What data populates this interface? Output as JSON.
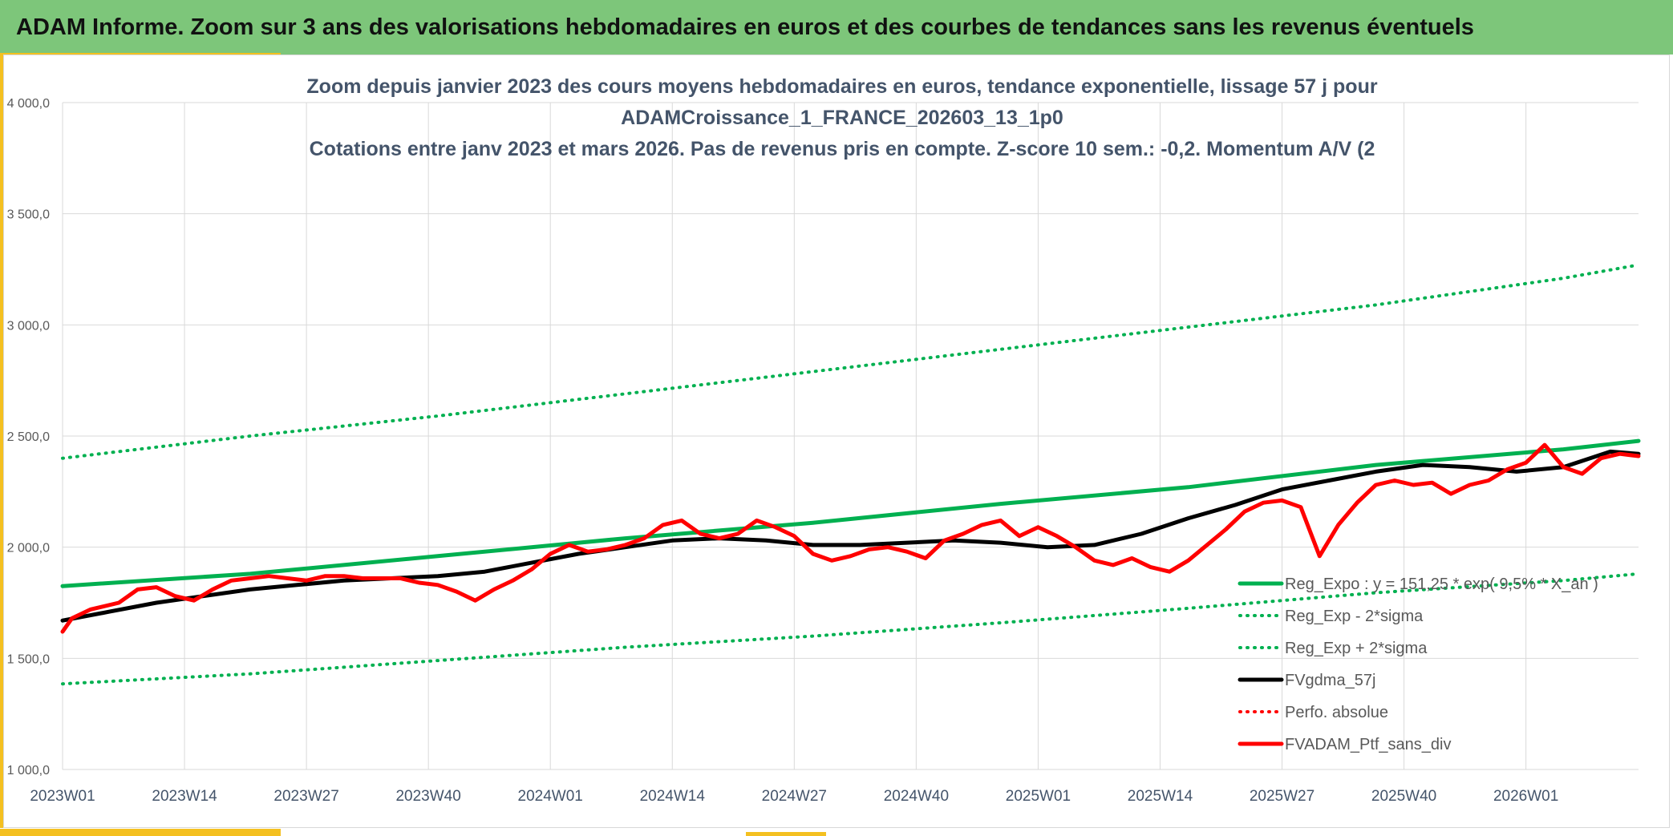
{
  "header": {
    "title": "ADAM Informe. Zoom sur 3 ans des valorisations hebdomadaires en euros et des courbes de tendances sans les revenus éventuels"
  },
  "colors": {
    "banner": "#7dc67a",
    "accent": "#f4c020",
    "trend": "#00b050",
    "mean": "#000000",
    "price": "#ff0000",
    "grid": "#d9d9d9"
  },
  "chart_data": {
    "type": "line",
    "title_lines": [
      "Zoom depuis janvier 2023 des cours moyens hebdomadaires en euros, tendance exponentielle, lissage 57 j pour",
      "ADAMCroissance_1_FRANCE_202603_13_1p0",
      "Cotations entre janv 2023 et mars 2026. Pas de revenus pris en compte. Z-score 10 sem.: -0,2. Momentum A/V (2"
    ],
    "xlabel": "",
    "ylabel": "",
    "ylim": [
      1000,
      4000
    ],
    "yticks": [
      1000,
      1500,
      2000,
      2500,
      3000,
      3500,
      4000
    ],
    "ytick_labels": [
      "1 000,0",
      "1 500,0",
      "2 000,0",
      "2 500,0",
      "3 000,0",
      "3 500,0",
      "4 000,0"
    ],
    "xlim": [
      0,
      168
    ],
    "x_ticks": [
      {
        "index": 0,
        "label": "2023W01"
      },
      {
        "index": 13,
        "label": "2023W14"
      },
      {
        "index": 26,
        "label": "2023W27"
      },
      {
        "index": 39,
        "label": "2023W40"
      },
      {
        "index": 52,
        "label": "2024W01"
      },
      {
        "index": 65,
        "label": "2024W14"
      },
      {
        "index": 78,
        "label": "2024W27"
      },
      {
        "index": 91,
        "label": "2024W40"
      },
      {
        "index": 104,
        "label": "2025W01"
      },
      {
        "index": 117,
        "label": "2025W14"
      },
      {
        "index": 130,
        "label": "2025W27"
      },
      {
        "index": 143,
        "label": "2025W40"
      },
      {
        "index": 156,
        "label": "2026W01"
      }
    ],
    "legend_position": "bottom-right",
    "series": [
      {
        "name": "Reg_Expo : y = 151,25 * exp( 9,5% * X_an )",
        "style": "solid",
        "color": "#00b050",
        "points": [
          [
            0,
            1825
          ],
          [
            20,
            1880
          ],
          [
            40,
            1960
          ],
          [
            60,
            2040
          ],
          [
            80,
            2110
          ],
          [
            100,
            2195
          ],
          [
            120,
            2270
          ],
          [
            140,
            2370
          ],
          [
            160,
            2440
          ],
          [
            168,
            2478
          ]
        ]
      },
      {
        "name": "Reg_Exp - 2*sigma",
        "style": "dotted",
        "color": "#00b050",
        "points": [
          [
            0,
            1385
          ],
          [
            20,
            1430
          ],
          [
            40,
            1490
          ],
          [
            60,
            1550
          ],
          [
            80,
            1600
          ],
          [
            100,
            1660
          ],
          [
            120,
            1725
          ],
          [
            140,
            1795
          ],
          [
            160,
            1850
          ],
          [
            168,
            1880
          ]
        ]
      },
      {
        "name": "Reg_Exp + 2*sigma",
        "style": "dotted",
        "color": "#00b050",
        "points": [
          [
            0,
            2400
          ],
          [
            20,
            2500
          ],
          [
            40,
            2590
          ],
          [
            60,
            2690
          ],
          [
            80,
            2790
          ],
          [
            100,
            2890
          ],
          [
            120,
            2990
          ],
          [
            140,
            3090
          ],
          [
            160,
            3210
          ],
          [
            168,
            3270
          ]
        ]
      },
      {
        "name": "FVgdma_57j",
        "style": "solid",
        "color": "#000000",
        "points": [
          [
            0,
            1670
          ],
          [
            5,
            1710
          ],
          [
            10,
            1750
          ],
          [
            15,
            1780
          ],
          [
            20,
            1810
          ],
          [
            25,
            1830
          ],
          [
            30,
            1850
          ],
          [
            35,
            1860
          ],
          [
            40,
            1870
          ],
          [
            45,
            1890
          ],
          [
            50,
            1930
          ],
          [
            55,
            1970
          ],
          [
            60,
            2000
          ],
          [
            65,
            2030
          ],
          [
            70,
            2040
          ],
          [
            75,
            2030
          ],
          [
            80,
            2010
          ],
          [
            85,
            2010
          ],
          [
            90,
            2020
          ],
          [
            95,
            2030
          ],
          [
            100,
            2020
          ],
          [
            105,
            2000
          ],
          [
            110,
            2010
          ],
          [
            115,
            2060
          ],
          [
            120,
            2130
          ],
          [
            125,
            2190
          ],
          [
            130,
            2260
          ],
          [
            135,
            2300
          ],
          [
            140,
            2340
          ],
          [
            145,
            2370
          ],
          [
            150,
            2360
          ],
          [
            155,
            2340
          ],
          [
            160,
            2360
          ],
          [
            165,
            2430
          ],
          [
            168,
            2420
          ]
        ]
      },
      {
        "name": "Perfo. absolue",
        "style": "dotted",
        "color": "#ff0000",
        "points": []
      },
      {
        "name": "FVADAM_Ptf_sans_div",
        "style": "solid",
        "color": "#ff0000",
        "points": [
          [
            0,
            1620
          ],
          [
            1,
            1680
          ],
          [
            3,
            1720
          ],
          [
            6,
            1750
          ],
          [
            8,
            1810
          ],
          [
            10,
            1820
          ],
          [
            12,
            1780
          ],
          [
            14,
            1760
          ],
          [
            16,
            1810
          ],
          [
            18,
            1850
          ],
          [
            20,
            1860
          ],
          [
            22,
            1870
          ],
          [
            24,
            1860
          ],
          [
            26,
            1850
          ],
          [
            28,
            1870
          ],
          [
            30,
            1870
          ],
          [
            32,
            1860
          ],
          [
            34,
            1860
          ],
          [
            36,
            1860
          ],
          [
            38,
            1840
          ],
          [
            40,
            1830
          ],
          [
            42,
            1800
          ],
          [
            44,
            1760
          ],
          [
            46,
            1810
          ],
          [
            48,
            1850
          ],
          [
            50,
            1900
          ],
          [
            52,
            1970
          ],
          [
            54,
            2010
          ],
          [
            56,
            1980
          ],
          [
            58,
            1990
          ],
          [
            60,
            2010
          ],
          [
            62,
            2040
          ],
          [
            64,
            2100
          ],
          [
            66,
            2120
          ],
          [
            68,
            2060
          ],
          [
            70,
            2040
          ],
          [
            72,
            2060
          ],
          [
            74,
            2120
          ],
          [
            76,
            2090
          ],
          [
            78,
            2050
          ],
          [
            80,
            1970
          ],
          [
            82,
            1940
          ],
          [
            84,
            1960
          ],
          [
            86,
            1990
          ],
          [
            88,
            2000
          ],
          [
            90,
            1980
          ],
          [
            92,
            1950
          ],
          [
            94,
            2030
          ],
          [
            96,
            2060
          ],
          [
            98,
            2100
          ],
          [
            100,
            2120
          ],
          [
            102,
            2050
          ],
          [
            104,
            2090
          ],
          [
            106,
            2050
          ],
          [
            108,
            2000
          ],
          [
            110,
            1940
          ],
          [
            112,
            1920
          ],
          [
            114,
            1950
          ],
          [
            116,
            1910
          ],
          [
            118,
            1890
          ],
          [
            120,
            1940
          ],
          [
            122,
            2010
          ],
          [
            124,
            2080
          ],
          [
            126,
            2160
          ],
          [
            128,
            2200
          ],
          [
            130,
            2210
          ],
          [
            132,
            2180
          ],
          [
            134,
            1960
          ],
          [
            136,
            2100
          ],
          [
            138,
            2200
          ],
          [
            140,
            2280
          ],
          [
            142,
            2300
          ],
          [
            144,
            2280
          ],
          [
            146,
            2290
          ],
          [
            148,
            2240
          ],
          [
            150,
            2280
          ],
          [
            152,
            2300
          ],
          [
            154,
            2350
          ],
          [
            156,
            2380
          ],
          [
            158,
            2460
          ],
          [
            160,
            2360
          ],
          [
            162,
            2330
          ],
          [
            164,
            2400
          ],
          [
            166,
            2420
          ],
          [
            168,
            2410
          ]
        ]
      }
    ]
  }
}
